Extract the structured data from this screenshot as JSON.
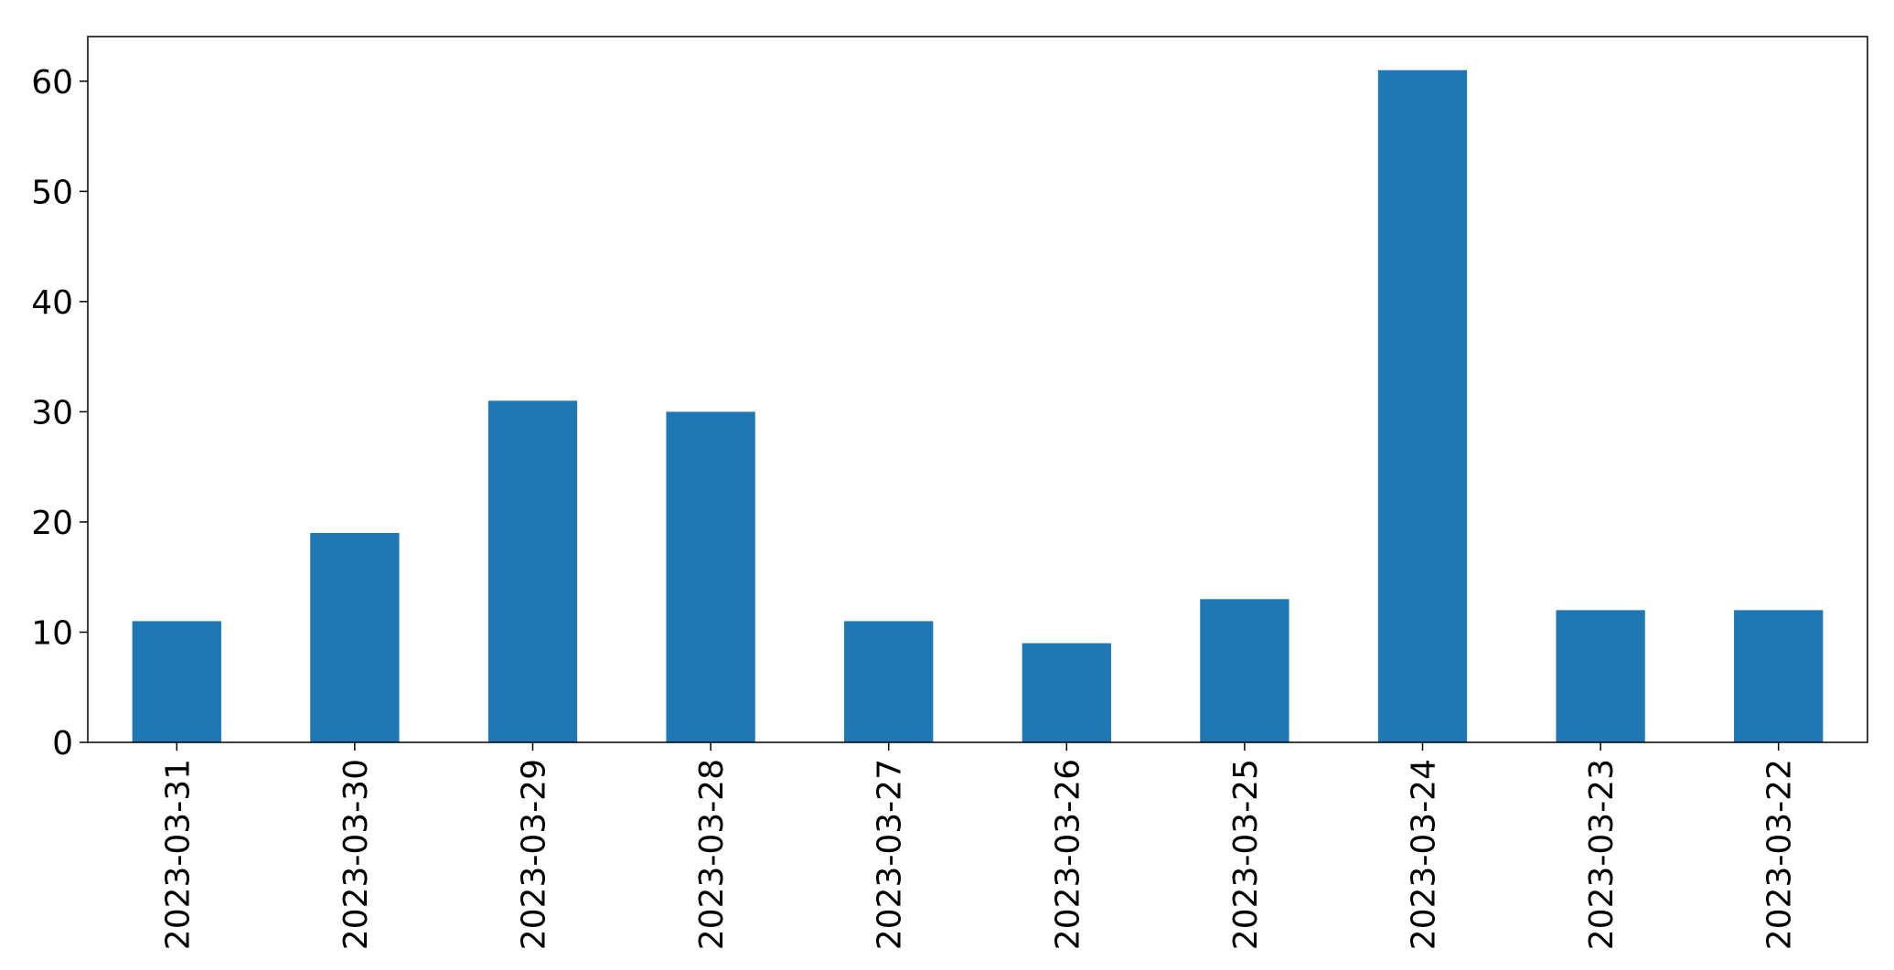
{
  "chart_data": {
    "type": "bar",
    "categories": [
      "2023-03-31",
      "2023-03-30",
      "2023-03-29",
      "2023-03-28",
      "2023-03-27",
      "2023-03-26",
      "2023-03-25",
      "2023-03-24",
      "2023-03-23",
      "2023-03-22"
    ],
    "values": [
      11,
      19,
      31,
      30,
      11,
      9,
      13,
      61,
      12,
      12
    ],
    "color": "#1f77b4",
    "ylim": [
      0,
      64.05
    ],
    "yticks": [
      0,
      10,
      20,
      30,
      40,
      50,
      60
    ],
    "grid": false
  }
}
